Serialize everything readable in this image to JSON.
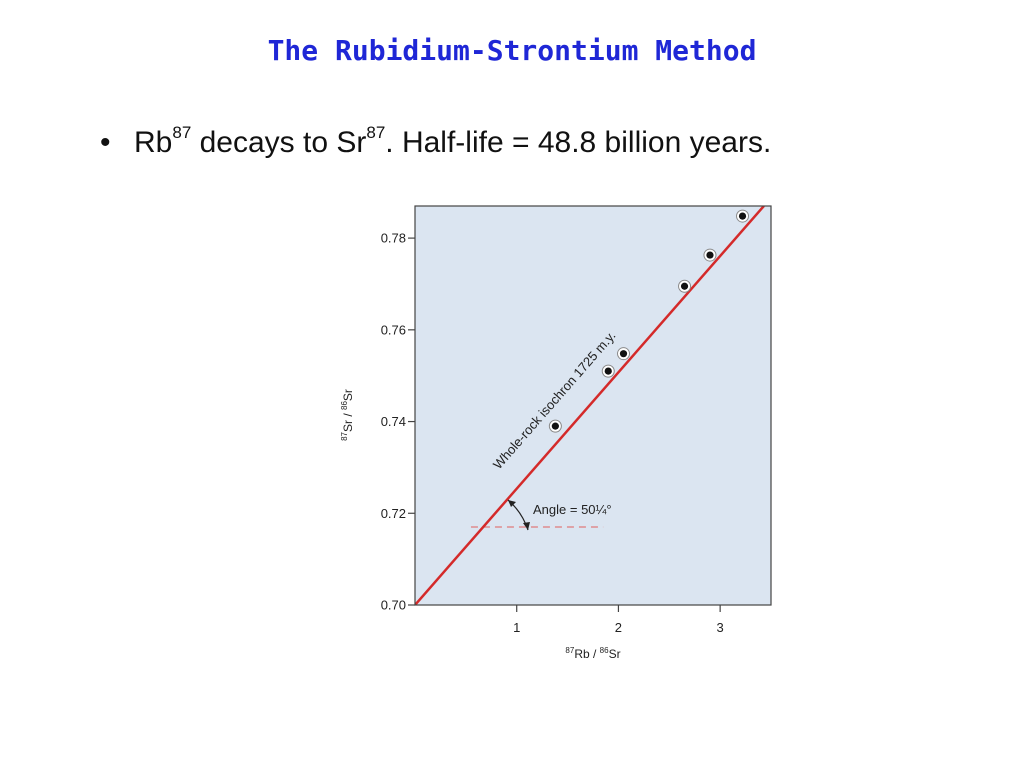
{
  "slide": {
    "title": "The Rubidium-Strontium Method",
    "bullet": {
      "marker": "•",
      "parts": {
        "rb": "Rb",
        "rb_sup": "87",
        "mid": " decays to Sr",
        "sr_sup": "87",
        "rest": ". Half-life = 48.8 billion years."
      }
    }
  },
  "colors": {
    "title": "#1f27d6",
    "plot_background": "#dbe5f1",
    "isochron_line": "#d42a2a",
    "reference_line": "#e07b7b"
  },
  "chart_data": {
    "type": "scatter",
    "title": "",
    "xlabel": {
      "sup1": "87",
      "a": "Rb / ",
      "sup2": "86",
      "b": "Sr"
    },
    "ylabel": {
      "sup1": "87",
      "a": "Sr / ",
      "sup2": "86",
      "b": "Sr"
    },
    "xlim": [
      0,
      3.5
    ],
    "ylim": [
      0.7,
      0.787
    ],
    "x_ticks": [
      1,
      2,
      3
    ],
    "y_ticks": [
      0.7,
      0.72,
      0.74,
      0.76,
      0.78
    ],
    "y_tick_labels": [
      "0.70",
      "0.72",
      "0.74",
      "0.76",
      "0.78"
    ],
    "grid": false,
    "points": [
      {
        "x": 1.38,
        "y": 0.739
      },
      {
        "x": 1.9,
        "y": 0.751
      },
      {
        "x": 2.05,
        "y": 0.7548
      },
      {
        "x": 2.65,
        "y": 0.7695
      },
      {
        "x": 2.9,
        "y": 0.7763
      },
      {
        "x": 3.22,
        "y": 0.7848
      }
    ],
    "isochron": {
      "label": "Whole-rock isochron 1725 m.y.",
      "from": {
        "x": 0,
        "y": 0.7
      },
      "to": {
        "x": 3.43,
        "y": 0.787
      }
    },
    "reference_line": {
      "y": 0.717,
      "x_start": 0.55,
      "x_end": 1.85
    },
    "angle_annotation": "Angle = 50¼°"
  }
}
